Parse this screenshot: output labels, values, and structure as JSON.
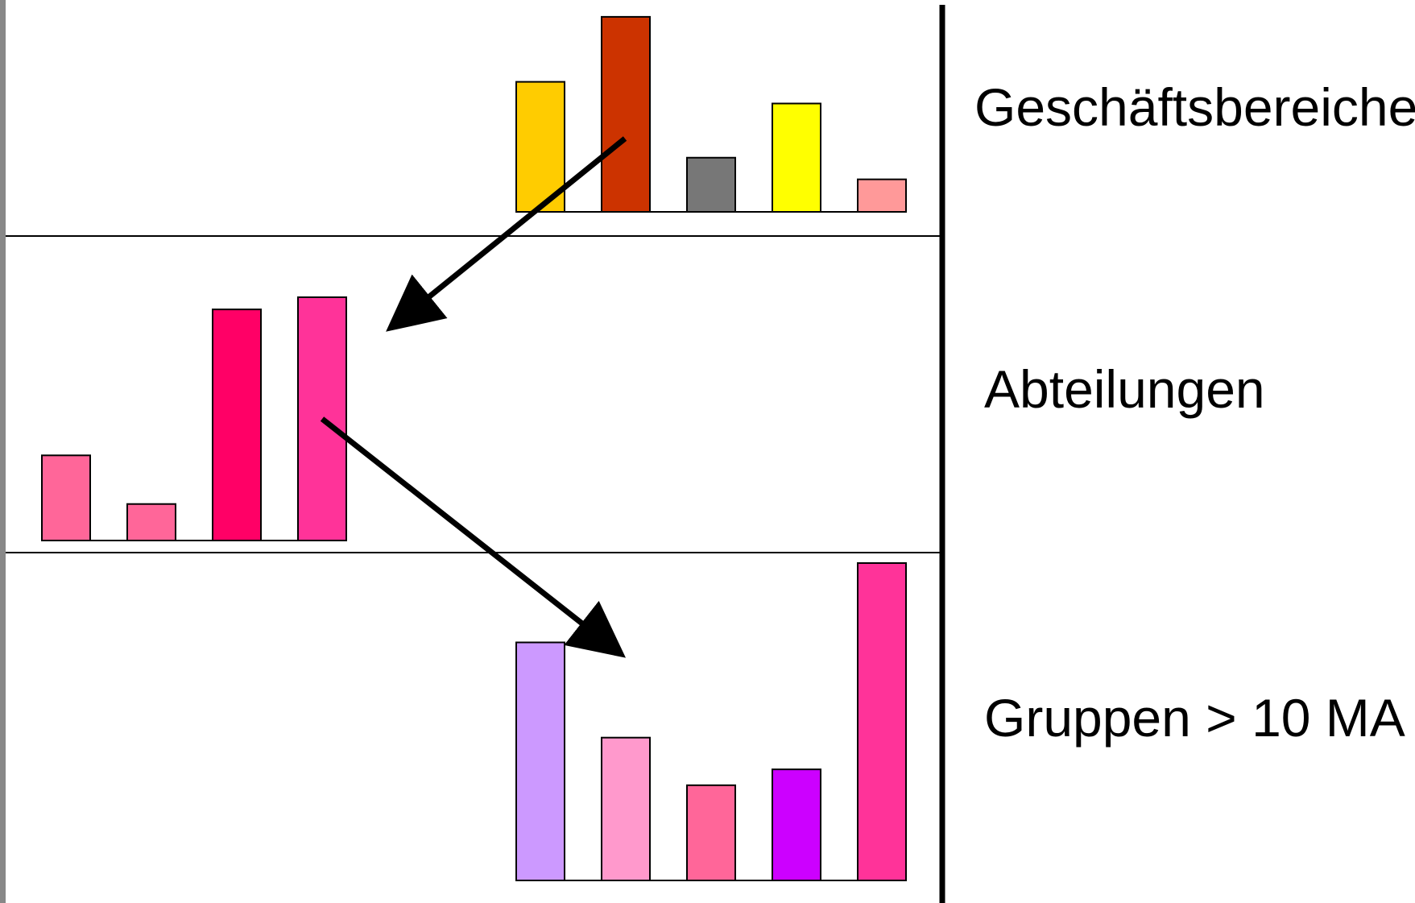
{
  "chart_data": [
    {
      "type": "bar",
      "title": "Geschäftsbereiche",
      "values": [
        6,
        9,
        2.5,
        5,
        1.5
      ],
      "colors": [
        "#FFCC00",
        "#CC3300",
        "#777777",
        "#FFFF00",
        "#FF9999"
      ]
    },
    {
      "type": "bar",
      "title": "Abteilungen",
      "values": [
        3.5,
        1.5,
        9.5,
        10
      ],
      "colors": [
        "#FF6699",
        "#FF6699",
        "#FF0066",
        "#FF3399"
      ]
    },
    {
      "type": "bar",
      "title": "Gruppen > 10 MA",
      "values": [
        7.5,
        4.5,
        3,
        3.5,
        10
      ],
      "colors": [
        "#CC99FF",
        "#FF99CC",
        "#FF6699",
        "#CC00FF",
        "#FF3399"
      ]
    }
  ],
  "arrows": [
    {
      "from": "Geschäftsbereiche",
      "to": "Abteilungen"
    },
    {
      "from": "Abteilungen",
      "to": "Gruppen > 10 MA"
    }
  ],
  "colors": {
    "divider": "#000000",
    "left_border": "#888888",
    "bar_outline": "#000000"
  }
}
